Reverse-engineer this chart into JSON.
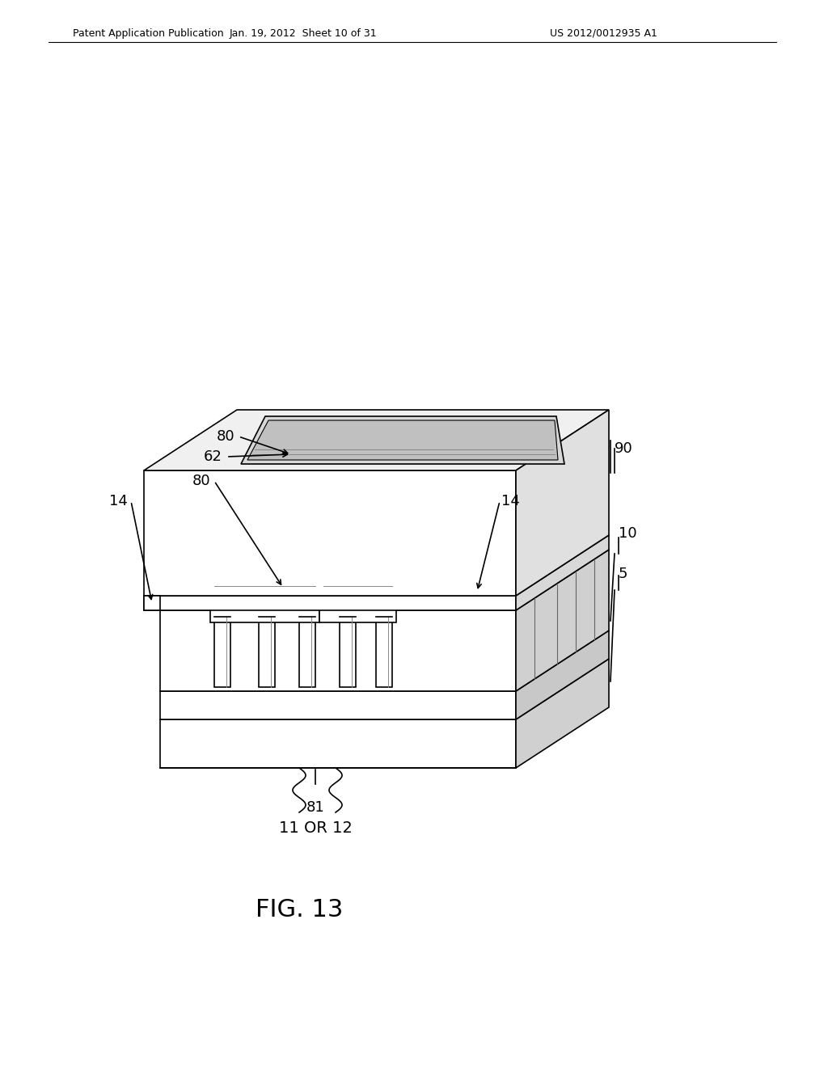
{
  "bg_color": "#ffffff",
  "line_color": "#000000",
  "header_left": "Patent Application Publication",
  "header_mid": "Jan. 19, 2012  Sheet 10 of 31",
  "header_right": "US 2012/0012935 A1",
  "figure_label": "FIG. 13",
  "labels": {
    "80_top": "80",
    "62": "62",
    "80_mid": "80",
    "14_left": "14",
    "14_right": "14",
    "90": "90",
    "10": "10",
    "5": "5",
    "81": "81",
    "11or12": "11 OR 12"
  }
}
